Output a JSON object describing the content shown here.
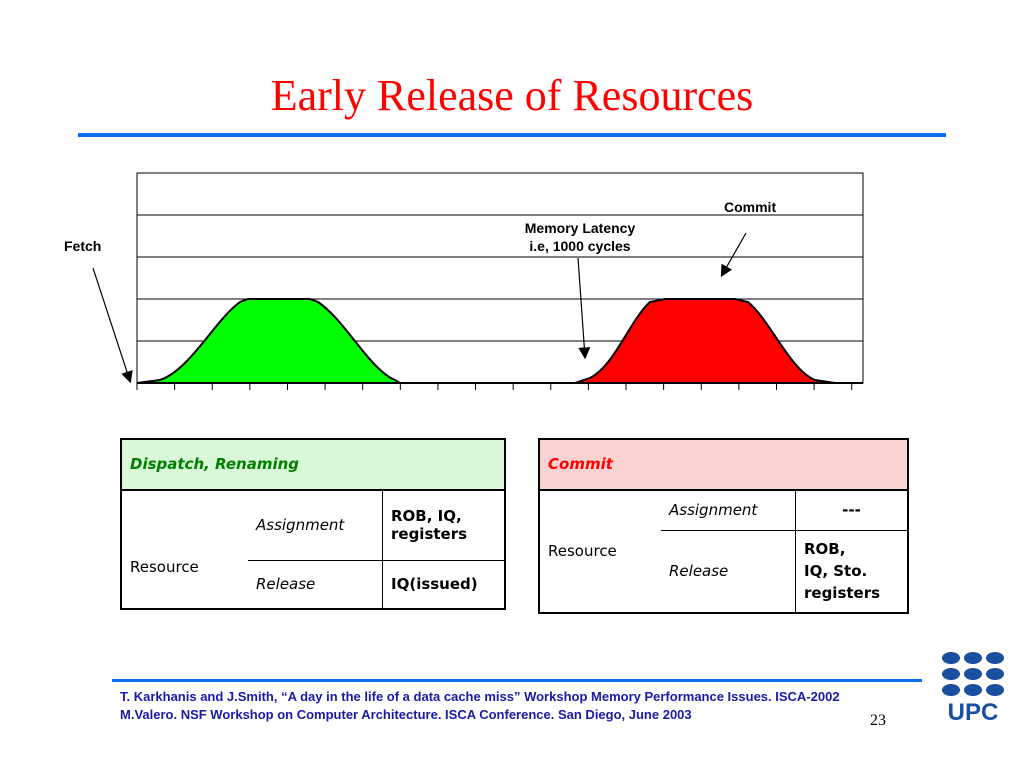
{
  "slide": {
    "title": "Early Release of Resources",
    "page_number": "23"
  },
  "figure": {
    "labels": {
      "fetch": "Fetch",
      "memory_latency_line1": "Memory Latency",
      "memory_latency_line2": "i.e, 1000 cycles",
      "commit": "Commit"
    },
    "colors": {
      "first_curve": "#00ff00",
      "second_curve": "#ff0000"
    }
  },
  "tables": {
    "dispatch": {
      "header": "Dispatch, Renaming",
      "resource": "Resource",
      "assignment_label": "Assignment",
      "assignment_value_line1": "ROB, IQ,",
      "assignment_value_line2": "registers",
      "release_label": "Release",
      "release_value": "IQ(issued)"
    },
    "commit": {
      "header": "Commit",
      "resource": "Resource",
      "assignment_label": "Assignment",
      "assignment_value": "---",
      "release_label": "Release",
      "release_value_line1": "ROB,",
      "release_value_line2": "IQ, Sto.",
      "release_value_line3": "registers"
    }
  },
  "citation": {
    "line1": "T. Karkhanis and J.Smith, “A day in the life of a data cache miss”  Workshop Memory Performance Issues. ISCA-2002",
    "line2": "M.Valero. NSF Workshop on Computer Architecture. ISCA Conference. San Diego, June 2003"
  },
  "logo": {
    "text": "UPC",
    "color": "#1a4fa0"
  }
}
